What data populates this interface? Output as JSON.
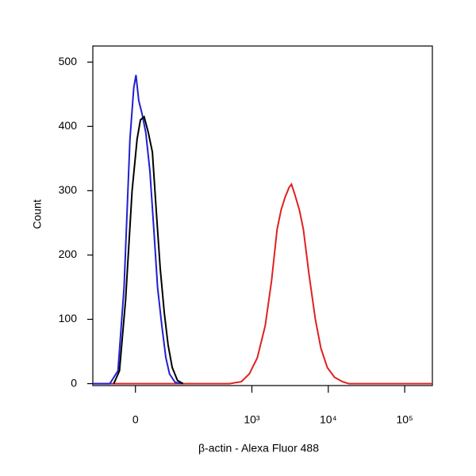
{
  "chart_data": {
    "type": "line",
    "xlabel": "β-actin - Alexa Fluor 488",
    "ylabel": "Count",
    "xscale": "biexponential",
    "xlim": [
      -100,
      230000
    ],
    "xticks": [
      0,
      {
        "value": 1000,
        "label": "10³"
      },
      {
        "value": 10000,
        "label": "10⁴"
      },
      {
        "value": 100000,
        "label": "10⁵"
      }
    ],
    "ylim": [
      -3,
      525
    ],
    "yticks": [
      0,
      100,
      200,
      300,
      400,
      500
    ],
    "series": [
      {
        "color": "#e02020",
        "x": [
          -100,
          507,
          727,
          924,
          1176,
          1494,
          1811,
          2142,
          2412,
          2722,
          3068,
          3298,
          3632,
          4192,
          4726,
          5593,
          6775,
          8013,
          9714,
          12045,
          15310,
          18552,
          230000
        ],
        "values": [
          0,
          0,
          3,
          15,
          40,
          90,
          160,
          240,
          270,
          290,
          305,
          310,
          295,
          270,
          240,
          170,
          100,
          55,
          25,
          10,
          3,
          0,
          0
        ]
      },
      {
        "color": "#2020d0",
        "x": [
          -100,
          -51,
          -33,
          -21,
          -10,
          -3,
          1,
          6,
          12,
          19,
          27,
          35,
          43,
          53,
          63,
          73,
          90,
          113
        ],
        "values": [
          0,
          0,
          20,
          150,
          380,
          460,
          480,
          440,
          420,
          390,
          330,
          240,
          150,
          90,
          40,
          15,
          2,
          0
        ]
      },
      {
        "color": "#000000",
        "x": [
          -42,
          -30,
          -18,
          -6,
          3,
          9,
          16,
          24,
          32,
          40,
          49,
          59,
          69,
          81,
          98,
          119
        ],
        "values": [
          0,
          20,
          130,
          300,
          380,
          410,
          415,
          390,
          360,
          270,
          180,
          110,
          60,
          25,
          5,
          0
        ]
      }
    ]
  }
}
